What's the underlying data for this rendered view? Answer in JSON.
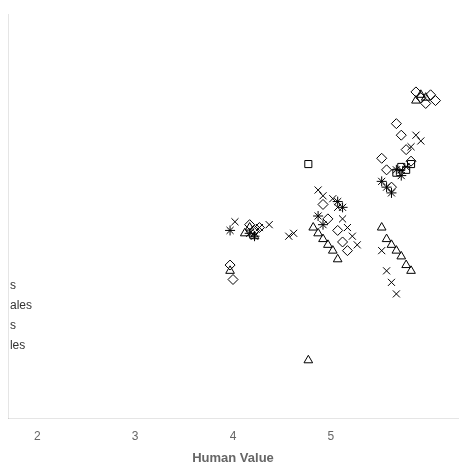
{
  "chart_data": {
    "type": "scatter",
    "xlabel": "Human Value",
    "xlim": [
      1.7,
      6.3
    ],
    "xticks": [
      2,
      3,
      4,
      5
    ],
    "ylim": [
      1.2,
      8.2
    ],
    "tick_labels": "x",
    "grid": false,
    "series": [
      {
        "marker": "diamond",
        "color": "#000000",
        "x": [
          3.97,
          4.0,
          4.17,
          4.22,
          4.27,
          4.92,
          4.97,
          5.07,
          5.12,
          5.17,
          5.52,
          5.57,
          5.62,
          5.67,
          5.72,
          5.77,
          5.82,
          5.87,
          5.92,
          5.97,
          6.02,
          6.07
        ],
        "values": [
          3.85,
          3.6,
          4.55,
          4.45,
          4.5,
          4.9,
          4.65,
          4.45,
          4.25,
          4.1,
          5.7,
          5.5,
          5.2,
          6.3,
          6.1,
          5.85,
          5.65,
          6.85,
          6.75,
          6.65,
          6.8,
          6.7
        ]
      },
      {
        "marker": "cross",
        "color": "#000000",
        "x": [
          4.02,
          4.27,
          4.37,
          4.57,
          4.62,
          4.87,
          4.92,
          5.02,
          5.07,
          5.12,
          5.17,
          5.22,
          5.27,
          5.52,
          5.57,
          5.62,
          5.67,
          5.72,
          5.77,
          5.82,
          5.87,
          5.92
        ],
        "values": [
          4.6,
          4.5,
          4.55,
          4.35,
          4.4,
          5.15,
          5.05,
          5.0,
          4.85,
          4.65,
          4.5,
          4.35,
          4.2,
          4.1,
          3.75,
          3.55,
          3.35,
          5.5,
          5.55,
          5.9,
          6.1,
          6.0
        ]
      },
      {
        "marker": "triangle",
        "color": "#000000",
        "x": [
          3.97,
          4.12,
          4.17,
          4.22,
          4.82,
          4.87,
          4.92,
          4.97,
          5.02,
          5.07,
          5.52,
          5.57,
          5.62,
          5.67,
          5.72,
          5.77,
          5.82,
          5.87,
          5.92,
          5.97,
          4.77
        ],
        "values": [
          3.75,
          4.4,
          4.5,
          4.35,
          4.5,
          4.4,
          4.3,
          4.2,
          4.1,
          3.95,
          4.5,
          4.3,
          4.2,
          4.1,
          4.0,
          3.85,
          3.75,
          6.7,
          6.8,
          6.75,
          2.2
        ]
      },
      {
        "marker": "square",
        "color": "#000000",
        "x": [
          4.77,
          5.67,
          5.72,
          5.77,
          5.82
        ],
        "values": [
          5.6,
          5.45,
          5.55,
          5.5,
          5.6
        ]
      },
      {
        "marker": "star",
        "color": "#000000",
        "x": [
          3.97,
          4.17,
          4.22,
          4.87,
          4.92,
          5.07,
          5.12,
          5.52,
          5.57,
          5.62,
          5.67,
          5.72
        ],
        "values": [
          4.45,
          4.4,
          4.35,
          4.7,
          4.55,
          4.95,
          4.85,
          5.3,
          5.2,
          5.1,
          5.5,
          5.4
        ]
      }
    ],
    "annotations": [
      {
        "text": "s",
        "x": 1.72,
        "y": 3.5
      },
      {
        "text": "ales",
        "x": 1.72,
        "y": 3.15
      },
      {
        "text": "s",
        "x": 1.72,
        "y": 2.8
      },
      {
        "text": "les",
        "x": 1.72,
        "y": 2.45
      }
    ]
  }
}
